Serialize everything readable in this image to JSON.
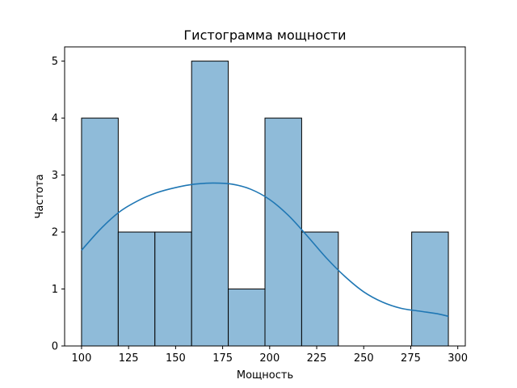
{
  "chart_data": {
    "type": "bar",
    "subtype": "histogram",
    "title": "Гистограмма мощности",
    "xlabel": "Мощность",
    "ylabel": "Частота",
    "xlim": [
      91,
      304
    ],
    "ylim": [
      0,
      5.25
    ],
    "x_ticks": [
      100,
      125,
      150,
      175,
      200,
      225,
      250,
      275,
      300
    ],
    "y_ticks": [
      0,
      1,
      2,
      3,
      4,
      5
    ],
    "bins": [
      {
        "start": 100,
        "end": 119.5,
        "count": 4
      },
      {
        "start": 119.5,
        "end": 139,
        "count": 2
      },
      {
        "start": 139,
        "end": 158.5,
        "count": 2
      },
      {
        "start": 158.5,
        "end": 178,
        "count": 5
      },
      {
        "start": 178,
        "end": 197.5,
        "count": 1
      },
      {
        "start": 197.5,
        "end": 217,
        "count": 4
      },
      {
        "start": 217,
        "end": 236.5,
        "count": 2
      },
      {
        "start": 236.5,
        "end": 256,
        "count": 0
      },
      {
        "start": 256,
        "end": 275.5,
        "count": 0
      },
      {
        "start": 275.5,
        "end": 295,
        "count": 2
      }
    ],
    "kde": {
      "x": [
        100,
        110,
        120,
        130,
        140,
        150,
        160,
        170,
        180,
        190,
        200,
        210,
        220,
        230,
        240,
        250,
        260,
        270,
        280,
        290,
        295
      ],
      "y": [
        1.68,
        2.05,
        2.35,
        2.55,
        2.69,
        2.78,
        2.84,
        2.86,
        2.84,
        2.75,
        2.57,
        2.29,
        1.93,
        1.55,
        1.22,
        0.95,
        0.77,
        0.66,
        0.61,
        0.56,
        0.52
      ]
    },
    "grid": false,
    "colors": {
      "bar_fill": "#8fbbd9",
      "bar_edge": "#000000",
      "kde_line": "#1f77b4",
      "axis": "#000000"
    }
  }
}
